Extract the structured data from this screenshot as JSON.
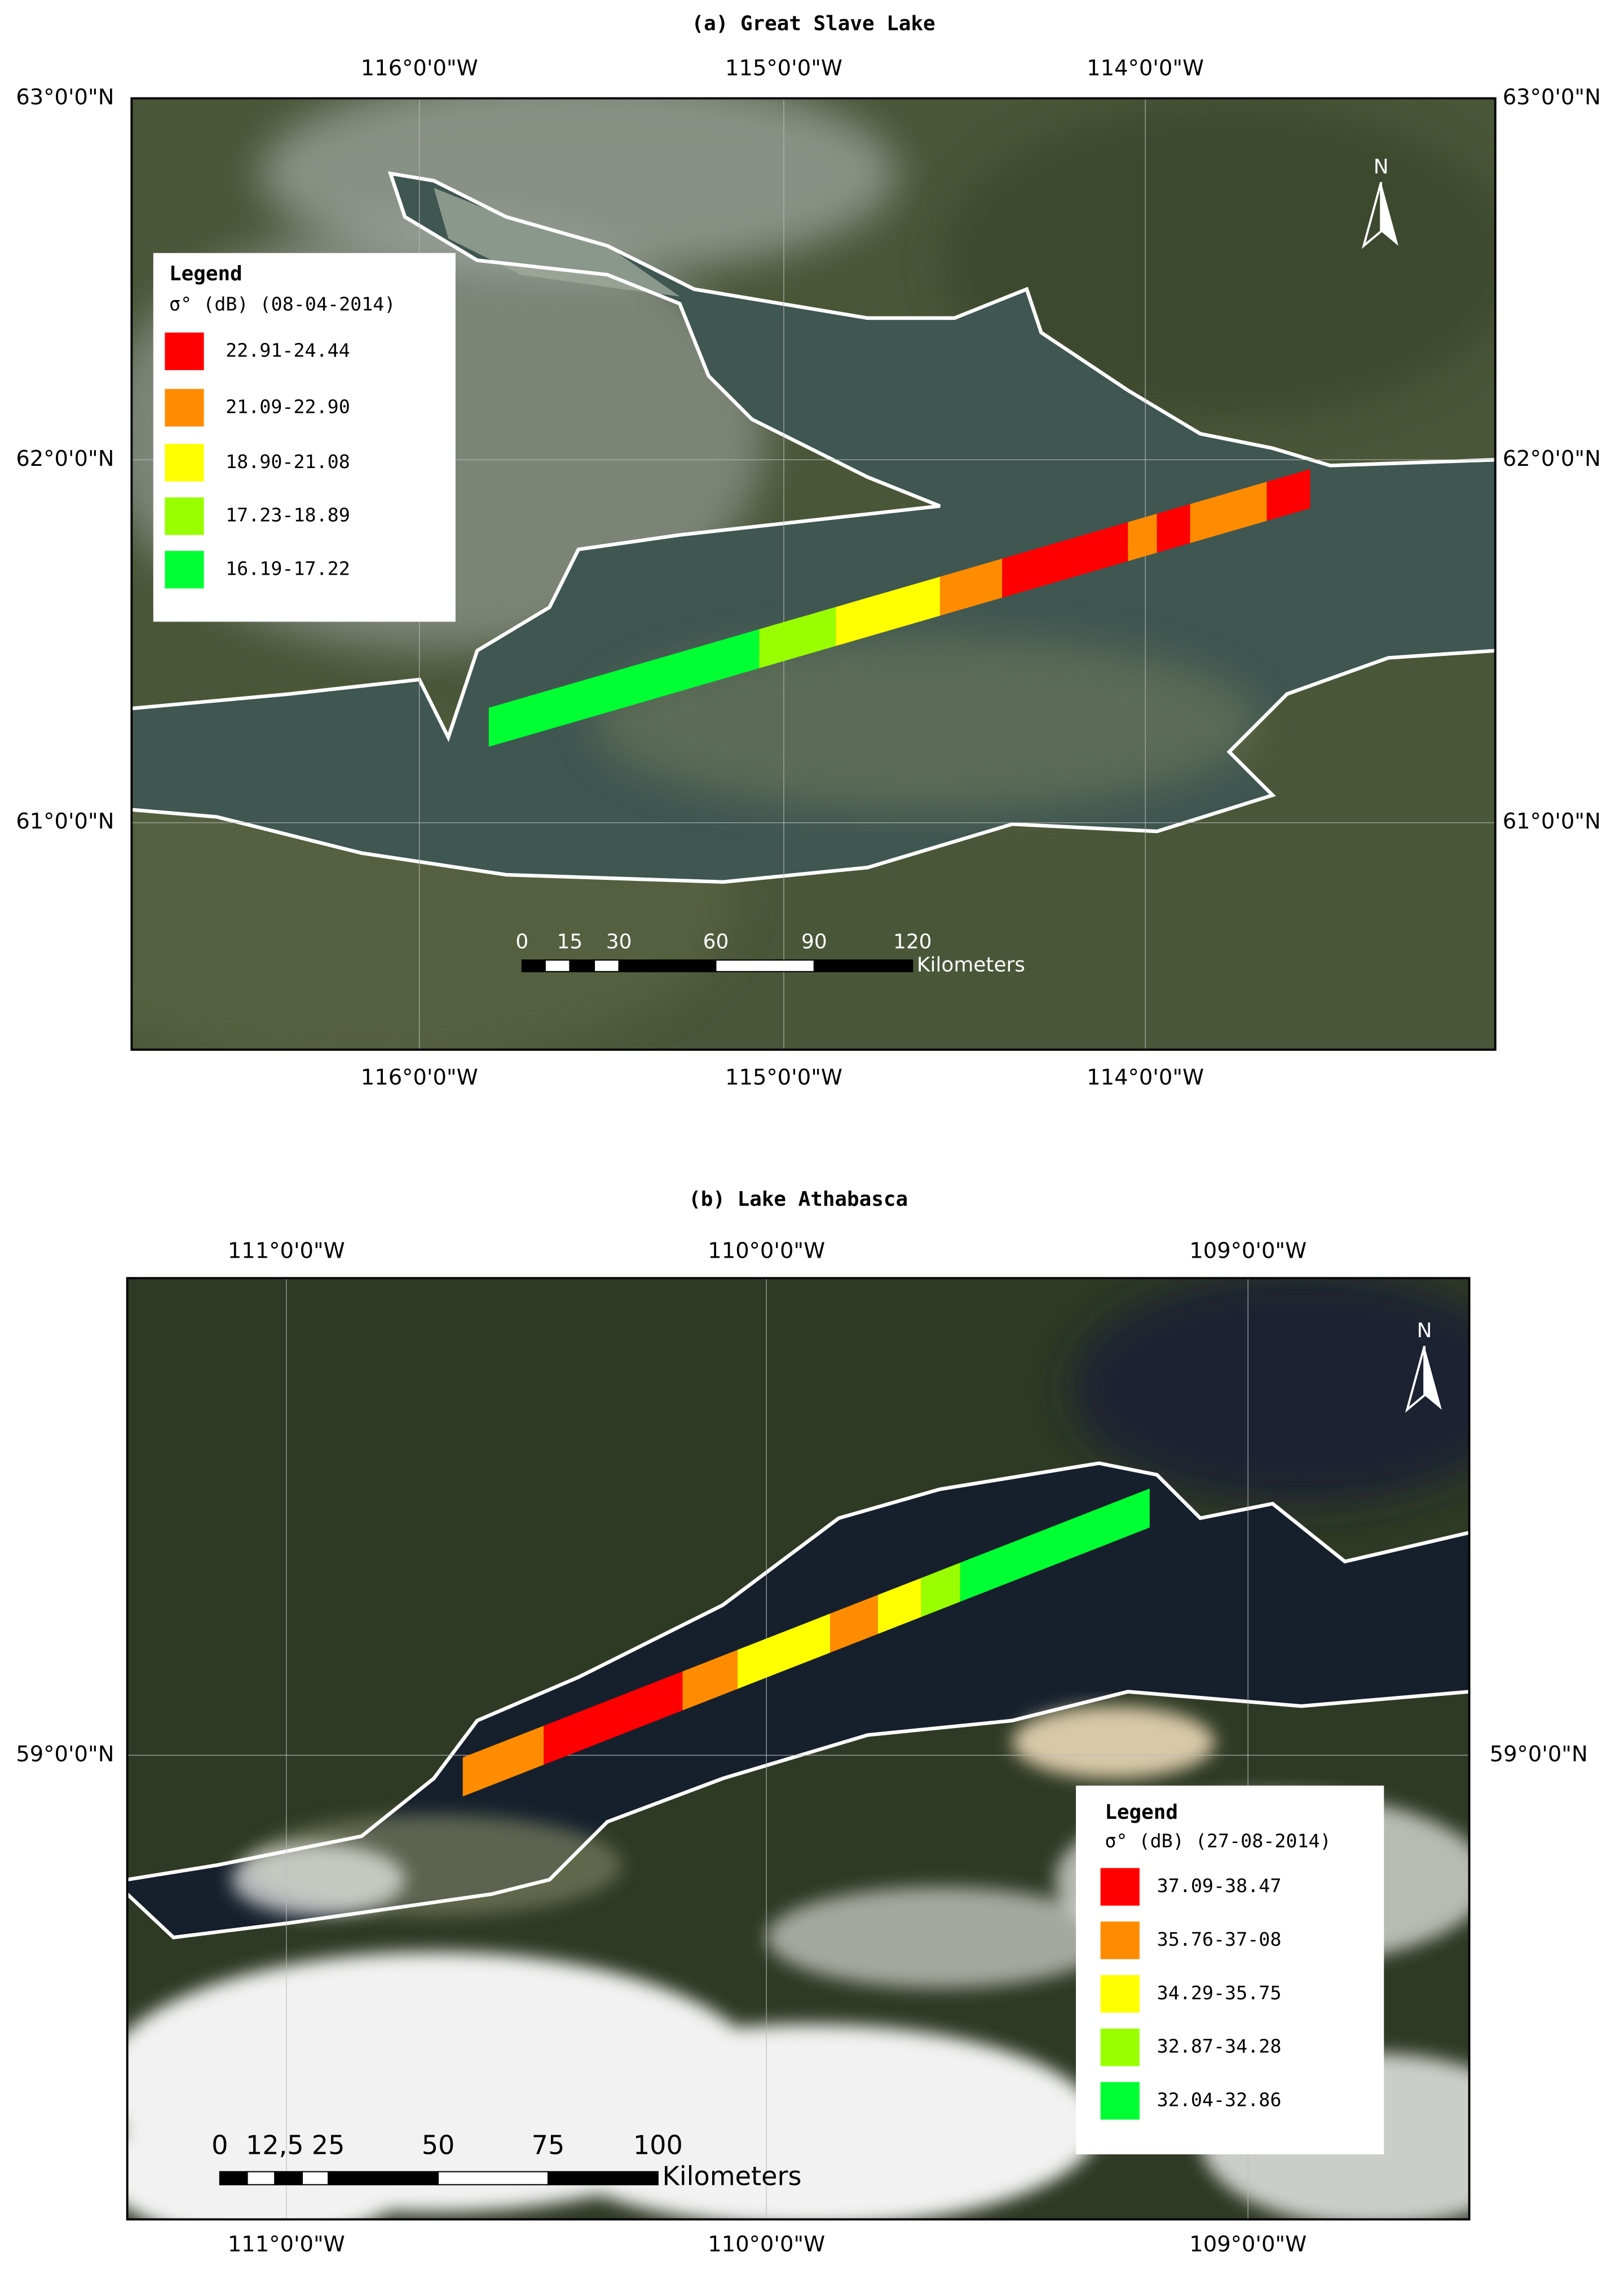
{
  "panels": [
    {
      "title": "(a) Great Slave Lake",
      "top_labels": [
        "116°0'0\"W",
        "115°0'0\"W",
        "114°0'0\"W"
      ],
      "bottom_labels": [
        "116°0'0\"W",
        "115°0'0\"W",
        "114°0'0\"W"
      ],
      "left_labels": [
        "63°0'0\"N",
        "62°0'0\"N",
        "61°0'0\"N"
      ],
      "right_labels": [
        "63°0'0\"N",
        "62°0'0\"N",
        "61°0'0\"N"
      ],
      "legend": {
        "title": "Legend",
        "subtitle": "σ° (dB) (08-04-2014)",
        "items": [
          {
            "label": "22.91-24.44",
            "color": "#ff0000"
          },
          {
            "label": "21.09-22.90",
            "color": "#ff8c00"
          },
          {
            "label": "18.90-21.08",
            "color": "#ffff00"
          },
          {
            "label": "17.23-18.89",
            "color": "#99ff00"
          },
          {
            "label": "16.19-17.22",
            "color": "#00ff33"
          }
        ]
      },
      "scale_bar": {
        "labels": [
          "0",
          "15",
          "30",
          "60",
          "90",
          "120"
        ],
        "unit": "Kilometers"
      },
      "north": "N"
    },
    {
      "title": "(b) Lake Athabasca",
      "top_labels": [
        "111°0'0\"W",
        "110°0'0\"W",
        "109°0'0\"W"
      ],
      "bottom_labels": [
        "111°0'0\"W",
        "110°0'0\"W",
        "109°0'0\"W"
      ],
      "left_labels": [
        "59°0'0\"N"
      ],
      "right_labels": [
        "59°0'0\"N"
      ],
      "legend": {
        "title": "Legend",
        "subtitle": "σ° (dB) (27-08-2014)",
        "items": [
          {
            "label": "37.09-38.47",
            "color": "#ff0000"
          },
          {
            "label": "35.76-37-08",
            "color": "#ff8c00"
          },
          {
            "label": "34.29-35.75",
            "color": "#ffff00"
          },
          {
            "label": "32.87-34.28",
            "color": "#99ff00"
          },
          {
            "label": "32.04-32.86",
            "color": "#00ff33"
          }
        ]
      },
      "scale_bar": {
        "labels": [
          "0",
          "12,5",
          "25",
          "50",
          "75",
          "100"
        ],
        "unit": "Kilometers"
      },
      "north": "N"
    }
  ]
}
